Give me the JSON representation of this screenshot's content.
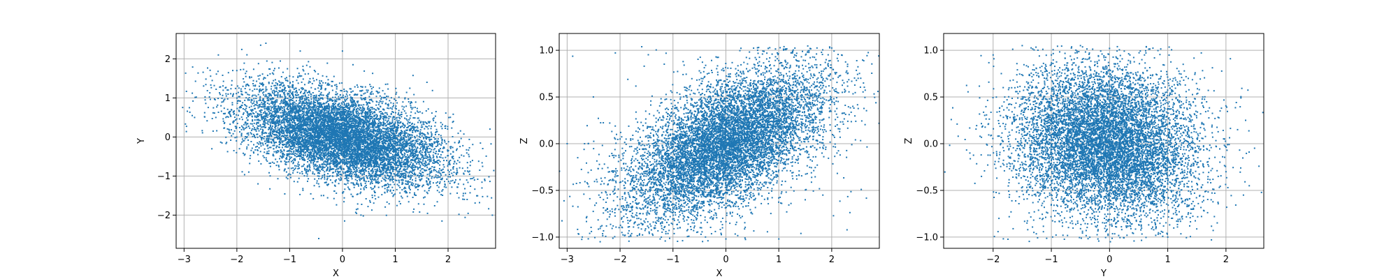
{
  "chart_data": [
    {
      "type": "scatter",
      "xlabel": "X",
      "ylabel": "Y",
      "xlim": [
        -3.15,
        2.9
      ],
      "ylim": [
        -2.85,
        2.65
      ],
      "xticks": [
        -3,
        -2,
        -1,
        0,
        1,
        2
      ],
      "yticks": [
        -2,
        -1,
        0,
        1,
        2
      ],
      "xtick_labels": [
        "−3",
        "−2",
        "−1",
        "0",
        "1",
        "2"
      ],
      "ytick_labels": [
        "−2",
        "−1",
        "0",
        "1",
        "2"
      ],
      "grid": true,
      "color": "#1f77b4",
      "series": [
        {
          "point_count": 20000,
          "points": [
            [
              -2.9,
              0.75
            ],
            [
              -2.8,
              0.5
            ],
            [
              -2.6,
              0.95
            ],
            [
              -2.45,
              0.15
            ],
            [
              -2.35,
              2.1
            ],
            [
              -2.2,
              1.05
            ],
            [
              -2.05,
              0.6
            ],
            [
              -1.95,
              -0.3
            ],
            [
              -1.8,
              1.35
            ],
            [
              -1.6,
              -1.2
            ],
            [
              -1.55,
              2.35
            ],
            [
              -1.45,
              2.4
            ],
            [
              -1.3,
              1.7
            ],
            [
              -1.1,
              0.45
            ],
            [
              -0.9,
              -0.6
            ],
            [
              -0.8,
              2.2
            ],
            [
              -0.6,
              1.1
            ],
            [
              -0.4,
              -1.5
            ],
            [
              -0.25,
              0.2
            ],
            [
              0.0,
              2.2
            ],
            [
              0.05,
              -0.9
            ],
            [
              0.2,
              1.85
            ],
            [
              0.35,
              -2.0
            ],
            [
              0.5,
              -0.2
            ],
            [
              0.7,
              1.25
            ],
            [
              0.85,
              -1.3
            ],
            [
              1.0,
              0.35
            ],
            [
              1.15,
              -0.95
            ],
            [
              1.3,
              0.9
            ],
            [
              1.45,
              -0.55
            ],
            [
              1.6,
              1.4
            ],
            [
              1.75,
              -0.3
            ],
            [
              1.9,
              -1.35
            ],
            [
              2.0,
              -0.85
            ],
            [
              2.1,
              0.4
            ],
            [
              2.2,
              -0.15
            ],
            [
              2.3,
              -0.95
            ],
            [
              2.4,
              -0.5
            ],
            [
              2.5,
              -1.1
            ],
            [
              2.6,
              -0.85
            ],
            [
              -0.45,
              -2.6
            ],
            [
              0.35,
              1.0
            ]
          ],
          "trend": {
            "slope": -0.33,
            "intercept": 0.0,
            "spread": 0.55
          }
        }
      ]
    },
    {
      "type": "scatter",
      "xlabel": "X",
      "ylabel": "Z",
      "xlim": [
        -3.15,
        2.9
      ],
      "ylim": [
        -1.12,
        1.18
      ],
      "xticks": [
        -3,
        -2,
        -1,
        0,
        1,
        2
      ],
      "yticks": [
        -1.0,
        -0.5,
        0.0,
        0.5,
        1.0
      ],
      "xtick_labels": [
        "−3",
        "−2",
        "−1",
        "0",
        "1",
        "2"
      ],
      "ytick_labels": [
        "−1.0",
        "−0.5",
        "0.0",
        "0.5",
        "1.0"
      ],
      "grid": true,
      "color": "#1f77b4",
      "series": [
        {
          "point_count": 20000,
          "points": [
            [
              -3.0,
              0.0
            ],
            [
              -2.8,
              -0.15
            ],
            [
              -2.6,
              0.0
            ],
            [
              -2.4,
              -0.55
            ],
            [
              -2.2,
              -0.3
            ],
            [
              -2.0,
              0.05
            ],
            [
              -1.8,
              -0.98
            ],
            [
              -1.6,
              -0.7
            ],
            [
              -1.4,
              0.15
            ],
            [
              -1.2,
              -0.85
            ],
            [
              -0.9,
              0.35
            ],
            [
              -0.6,
              -0.9
            ],
            [
              -0.3,
              0.45
            ],
            [
              0.0,
              -1.02
            ],
            [
              0.3,
              0.75
            ],
            [
              0.5,
              -0.75
            ],
            [
              0.6,
              1.0
            ],
            [
              0.8,
              1.02
            ],
            [
              1.0,
              -1.02
            ],
            [
              1.1,
              0.1
            ],
            [
              1.3,
              0.95
            ],
            [
              1.5,
              -0.6
            ],
            [
              1.7,
              0.9
            ],
            [
              1.9,
              0.7
            ],
            [
              2.1,
              -0.1
            ],
            [
              2.2,
              0.55
            ],
            [
              2.3,
              0.85
            ],
            [
              2.4,
              0.4
            ],
            [
              2.5,
              0.7
            ],
            [
              2.6,
              0.65
            ]
          ],
          "trend": {
            "slope": 0.24,
            "intercept": 0.0,
            "spread": 0.33,
            "clip": [
              -1.05,
              1.05
            ]
          }
        }
      ]
    },
    {
      "type": "scatter",
      "xlabel": "Y",
      "ylabel": "Z",
      "xlim": [
        -2.85,
        2.65
      ],
      "ylim": [
        -1.12,
        1.18
      ],
      "xticks": [
        -2,
        -1,
        0,
        1,
        2
      ],
      "yticks": [
        -1.0,
        -0.5,
        0.0,
        0.5,
        1.0
      ],
      "xtick_labels": [
        "−2",
        "−1",
        "0",
        "1",
        "2"
      ],
      "ytick_labels": [
        "−1.0",
        "−0.5",
        "0.0",
        "0.5",
        "1.0"
      ],
      "grid": true,
      "color": "#1f77b4",
      "series": [
        {
          "point_count": 20000,
          "points": [
            [
              -2.6,
              0.08
            ],
            [
              -2.4,
              -0.1
            ],
            [
              -2.2,
              -0.35
            ],
            [
              -2.0,
              0.95
            ],
            [
              -1.9,
              -0.8
            ],
            [
              -1.8,
              0.5
            ],
            [
              -1.5,
              1.05
            ],
            [
              -1.3,
              -0.95
            ],
            [
              -1.0,
              0.95
            ],
            [
              -0.8,
              -0.98
            ],
            [
              -0.5,
              1.05
            ],
            [
              -0.2,
              -1.02
            ],
            [
              0.0,
              1.02
            ],
            [
              0.3,
              -0.98
            ],
            [
              0.6,
              0.95
            ],
            [
              1.0,
              -1.0
            ],
            [
              1.2,
              0.75
            ],
            [
              1.4,
              -0.7
            ],
            [
              1.6,
              0.5
            ],
            [
              1.75,
              -1.03
            ],
            [
              1.9,
              0.35
            ],
            [
              2.0,
              -0.3
            ],
            [
              2.2,
              0.15
            ],
            [
              2.3,
              -0.55
            ],
            [
              2.4,
              -0.45
            ]
          ],
          "trend": {
            "slope": -0.06,
            "intercept": 0.0,
            "spread": 0.4,
            "clip": [
              -1.05,
              1.05
            ]
          }
        }
      ]
    }
  ]
}
